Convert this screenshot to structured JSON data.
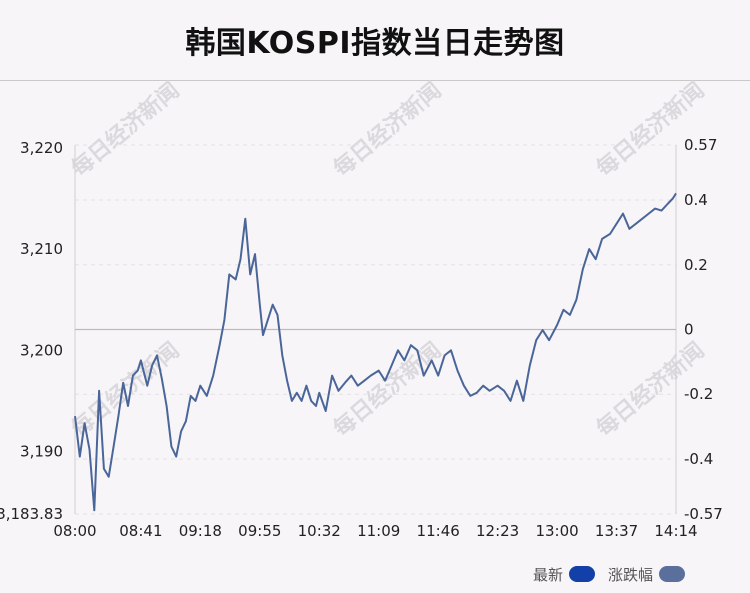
{
  "title": "韩国KOSPI指数当日走势图",
  "watermark": "每日经济新闻",
  "legend": [
    {
      "label": "最新",
      "color": "#1340a8"
    },
    {
      "label": "涨跌幅",
      "color": "#5a6f9c"
    }
  ],
  "colors": {
    "line": "#4a6699",
    "zero_line": "#bbbbbb",
    "grid": "#e2e2e2"
  },
  "chart_data": {
    "type": "line",
    "title": "韩国KOSPI指数当日走势图",
    "xlabel": "",
    "ylabel": "",
    "x_ticks": [
      "08:00",
      "08:41",
      "09:18",
      "09:55",
      "10:32",
      "11:09",
      "11:46",
      "12:23",
      "13:00",
      "13:37",
      "14:14"
    ],
    "y_left_ticks": [
      "3,183.83",
      "3,190",
      "3,200",
      "3,210",
      "3,220"
    ],
    "y_left_values": [
      3183.83,
      3190,
      3200,
      3210,
      3220
    ],
    "y_right_ticks": [
      "-0.57",
      "-0.4",
      "-0.2",
      "0",
      "0.2",
      "0.4",
      "0.57"
    ],
    "y_right_values": [
      -0.57,
      -0.4,
      -0.2,
      0,
      0.2,
      0.4,
      0.57
    ],
    "ylim": [
      3183.83,
      3220.28
    ],
    "reference_close": 3202.05,
    "grid": true,
    "series": [
      {
        "name": "最新",
        "x": [
          "08:00",
          "08:03",
          "08:06",
          "08:09",
          "08:12",
          "08:15",
          "08:18",
          "08:21",
          "08:24",
          "08:27",
          "08:30",
          "08:33",
          "08:36",
          "08:39",
          "08:41",
          "08:45",
          "08:48",
          "08:51",
          "08:54",
          "08:57",
          "09:00",
          "09:03",
          "09:06",
          "09:09",
          "09:12",
          "09:15",
          "09:18",
          "09:22",
          "09:26",
          "09:30",
          "09:33",
          "09:36",
          "09:40",
          "09:43",
          "09:46",
          "09:49",
          "09:52",
          "09:55",
          "09:57",
          "10:00",
          "10:03",
          "10:06",
          "10:09",
          "10:12",
          "10:15",
          "10:18",
          "10:21",
          "10:24",
          "10:27",
          "10:30",
          "10:32",
          "10:36",
          "10:40",
          "10:44",
          "10:48",
          "10:52",
          "10:56",
          "11:00",
          "11:04",
          "11:09",
          "11:13",
          "11:17",
          "11:21",
          "11:25",
          "11:29",
          "11:33",
          "11:37",
          "11:42",
          "11:46",
          "11:50",
          "11:54",
          "11:58",
          "12:02",
          "12:06",
          "12:10",
          "12:14",
          "12:18",
          "12:23",
          "12:27",
          "12:31",
          "12:35",
          "12:39",
          "12:43",
          "12:47",
          "12:51",
          "12:55",
          "13:00",
          "13:04",
          "13:08",
          "13:12",
          "13:16",
          "13:20",
          "13:24",
          "13:28",
          "13:33",
          "13:37",
          "13:41",
          "13:45",
          "13:49",
          "13:53",
          "13:57",
          "14:01",
          "14:05",
          "14:09",
          "14:12",
          "14:14"
        ],
        "y": [
          3193.5,
          3189.5,
          3192.8,
          3190.2,
          3184.2,
          3196.0,
          3188.3,
          3187.5,
          3190.5,
          3193.5,
          3196.8,
          3194.5,
          3197.5,
          3198.0,
          3199.0,
          3196.5,
          3198.5,
          3199.5,
          3197.2,
          3194.5,
          3190.5,
          3189.5,
          3192.0,
          3193.0,
          3195.5,
          3195.0,
          3196.5,
          3195.5,
          3197.5,
          3200.5,
          3203.0,
          3207.5,
          3207.0,
          3209.0,
          3213.0,
          3207.5,
          3209.5,
          3204.5,
          3201.5,
          3203.0,
          3204.5,
          3203.5,
          3199.5,
          3197.0,
          3195.0,
          3195.8,
          3195.0,
          3196.5,
          3195.0,
          3194.5,
          3195.8,
          3194.0,
          3197.5,
          3196.0,
          3196.8,
          3197.5,
          3196.5,
          3197.0,
          3197.5,
          3198.0,
          3197.0,
          3198.5,
          3200.0,
          3199.0,
          3200.5,
          3200.0,
          3197.5,
          3199.0,
          3197.5,
          3199.5,
          3200.0,
          3198.0,
          3196.5,
          3195.5,
          3195.8,
          3196.5,
          3196.0,
          3196.5,
          3196.0,
          3195.0,
          3197.0,
          3195.0,
          3198.5,
          3201.0,
          3202.0,
          3201.0,
          3202.5,
          3204.0,
          3203.5,
          3205.0,
          3208.0,
          3210.0,
          3209.0,
          3211.0,
          3211.5,
          3212.5,
          3213.5,
          3212.0,
          3212.5,
          3213.0,
          3213.5,
          3214.0,
          3213.8,
          3214.5,
          3215.0,
          3215.5
        ]
      }
    ]
  }
}
